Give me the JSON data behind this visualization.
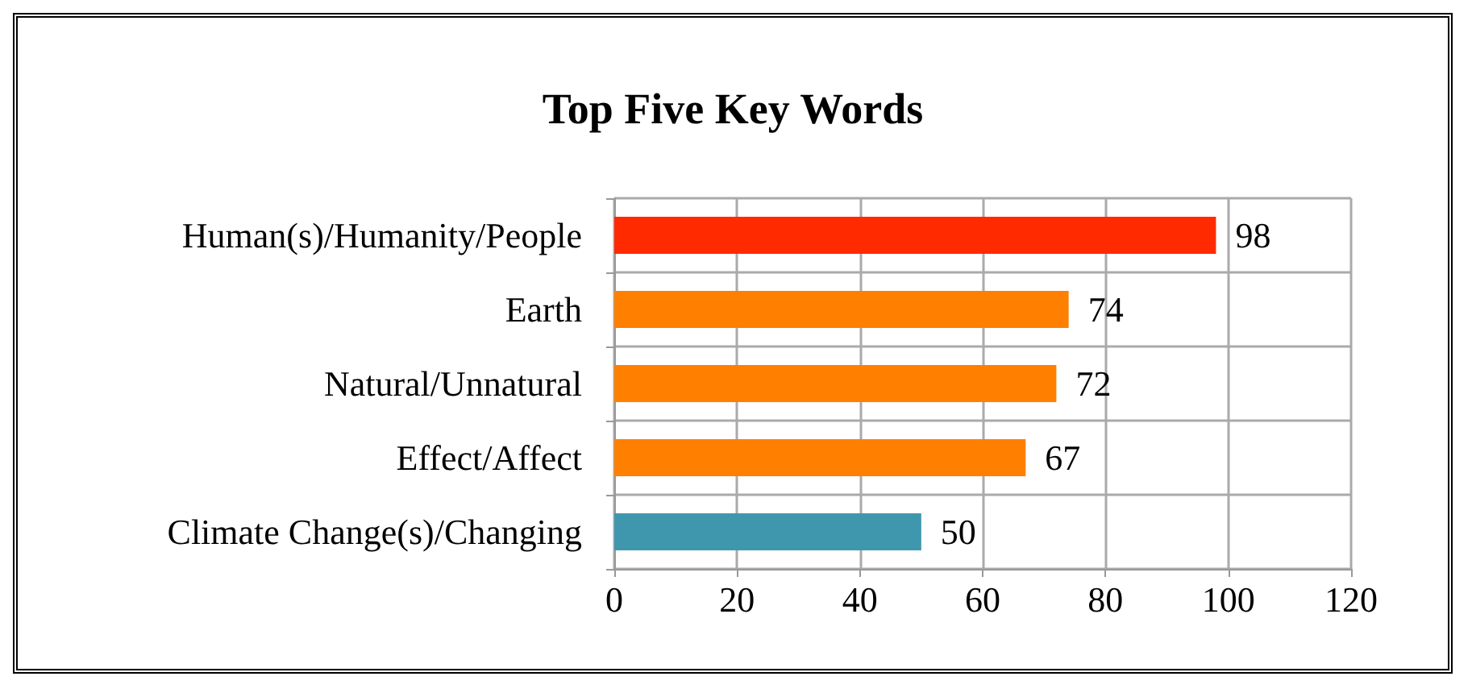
{
  "chart_data": {
    "type": "bar",
    "orientation": "horizontal",
    "title": "Top Five Key Words",
    "categories": [
      "Human(s)/Humanity/People",
      "Earth",
      "Natural/Unnatural",
      "Effect/Affect",
      "Climate Change(s)/Changing"
    ],
    "values": [
      98,
      74,
      72,
      67,
      50
    ],
    "colors": [
      "#ff2a00",
      "#ff7f00",
      "#ff7f00",
      "#ff7f00",
      "#3f97ae"
    ],
    "xlim": [
      0,
      120
    ],
    "xticks": [
      0,
      20,
      40,
      60,
      80,
      100,
      120
    ],
    "grid": true,
    "data_labels": true
  }
}
